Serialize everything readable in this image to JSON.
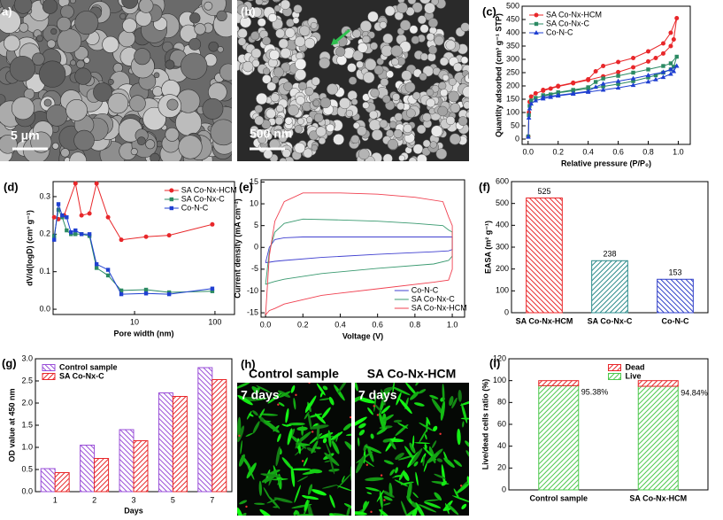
{
  "images": [
    {
      "label": "a)",
      "scale_bar": "5 μm"
    },
    {
      "label": "(b)",
      "scale_bar": "500 nm"
    },
    {
      "label": "(h)",
      "panels": [
        {
          "title": "Control sample",
          "note": "7 days"
        },
        {
          "title": "SA Co-Nx-HCM",
          "note": "7 days"
        }
      ]
    }
  ],
  "chart_data": [
    {
      "label": "(c)",
      "type": "line",
      "xlabel": "Relative pressure (P/P₀)",
      "ylabel": "Quantity adsorbed (cm³ g⁻¹ STP)",
      "xlim": [
        -0.04,
        1.08
      ],
      "ylim": [
        -20,
        500
      ],
      "xticks": [
        {
          "value": 0,
          "label": "0.0"
        },
        0.2,
        0.4,
        0.6,
        0.8,
        {
          "value": 1,
          "label": "1.0"
        }
      ],
      "yticks": [
        0,
        50,
        100,
        150,
        200,
        250,
        300,
        350,
        400,
        450,
        500
      ],
      "legend": "upper left",
      "x": [
        0.001,
        0.005,
        0.01,
        0.02,
        0.05,
        0.1,
        0.15,
        0.2,
        0.3,
        0.4,
        0.5,
        0.6,
        0.7,
        0.8,
        0.85,
        0.9,
        0.95,
        0.97,
        0.99,
        0.95,
        0.9,
        0.8,
        0.7,
        0.6,
        0.5,
        0.45,
        0.4,
        0.3,
        0.2,
        0.1
      ],
      "series": [
        {
          "name": "SA Co-Nx-HCM",
          "color": "#e8272a",
          "marker": "circle",
          "values": [
            10,
            100,
            140,
            160,
            172,
            182,
            190,
            198,
            210,
            222,
            236,
            252,
            270,
            292,
            305,
            322,
            350,
            375,
            455,
            400,
            360,
            330,
            305,
            290,
            275,
            255,
            225,
            212,
            200,
            185
          ]
        },
        {
          "name": "SA Co-Nx-C",
          "color": "#2b8a63",
          "marker": "square",
          "values": [
            10,
            90,
            125,
            145,
            155,
            162,
            168,
            174,
            182,
            190,
            198,
            207,
            218,
            232,
            240,
            250,
            262,
            272,
            310,
            285,
            275,
            262,
            250,
            238,
            228,
            215,
            195,
            185,
            176,
            165
          ]
        },
        {
          "name": "Co-N-C",
          "color": "#1f3fd1",
          "marker": "triangle",
          "values": [
            8,
            80,
            115,
            133,
            145,
            152,
            158,
            163,
            170,
            177,
            185,
            193,
            203,
            216,
            224,
            233,
            245,
            255,
            275,
            262,
            252,
            240,
            228,
            218,
            208,
            196,
            180,
            172,
            165,
            158
          ]
        }
      ]
    },
    {
      "label": "(d)",
      "type": "line",
      "xscale": "log",
      "xlabel": "Pore width (nm)",
      "ylabel": "dV/d(logD) (cm³ g⁻¹)",
      "xlim": [
        0.97,
        175
      ],
      "ylim": [
        -0.014,
        0.34
      ],
      "xticks": [
        10,
        100
      ],
      "yticks": [
        {
          "value": 0,
          "label": "0.0"
        },
        0.1,
        0.2,
        0.3
      ],
      "legend": "upper right",
      "series": [
        {
          "name": "SA Co-Nx-HCM",
          "color": "#e8272a",
          "marker": "circle",
          "x": [
            1.0,
            1.13,
            1.33,
            1.84,
            2.19,
            2.75,
            3.37,
            4.68,
            6.84,
            13.9,
            26.9,
            92.7
          ],
          "values": [
            0.245,
            0.24,
            0.25,
            0.335,
            0.25,
            0.255,
            0.335,
            0.245,
            0.185,
            0.193,
            0.197,
            0.226
          ]
        },
        {
          "name": "SA Co-Nx-C",
          "color": "#2b8a63",
          "marker": "square",
          "x": [
            1.0,
            1.13,
            1.26,
            1.43,
            1.62,
            1.84,
            2.19,
            2.75,
            3.37,
            4.68,
            6.84,
            13.9,
            26.9,
            92.7
          ],
          "values": [
            0.195,
            0.265,
            0.245,
            0.21,
            0.2,
            0.2,
            0.2,
            0.195,
            0.11,
            0.09,
            0.05,
            0.052,
            0.045,
            0.048
          ]
        },
        {
          "name": "Co-N-C",
          "color": "#1f3fd1",
          "marker": "square",
          "x": [
            1.0,
            1.13,
            1.26,
            1.43,
            1.62,
            1.84,
            2.19,
            2.75,
            3.37,
            4.68,
            6.84,
            13.9,
            26.9,
            92.7
          ],
          "values": [
            0.185,
            0.28,
            0.25,
            0.245,
            0.205,
            0.21,
            0.2,
            0.2,
            0.12,
            0.105,
            0.04,
            0.042,
            0.04,
            0.055
          ]
        }
      ]
    },
    {
      "label": "(e)",
      "type": "line",
      "xlabel": "Voltage (V)",
      "ylabel": "Current density (mA cm⁻²)",
      "xlim": [
        -0.024,
        1.066
      ],
      "ylim": [
        -16,
        15.5
      ],
      "xticks": [
        {
          "value": 0,
          "label": "0.0"
        },
        0.2,
        0.4,
        0.6,
        0.8,
        {
          "value": 1,
          "label": "1.0"
        }
      ],
      "yticks": [
        -15,
        -10,
        -5,
        0,
        5,
        10,
        15
      ],
      "legend": "lower right",
      "x": [
        0.0,
        0.02,
        0.05,
        0.1,
        0.2,
        0.4,
        0.6,
        0.8,
        0.95,
        0.98,
        1.0,
        1.0,
        0.98,
        0.9,
        0.6,
        0.3,
        0.1,
        0.05,
        0.02,
        0.0
      ],
      "series": [
        {
          "name": "Co-N-C",
          "color": "#4040d0",
          "values": [
            -3.5,
            0,
            1.8,
            2.2,
            2.4,
            2.4,
            2.4,
            2.4,
            2.4,
            2.4,
            2.4,
            -0.5,
            -0.8,
            -1,
            -1.6,
            -2.3,
            -3,
            -3.2,
            -3.4,
            -3.5
          ]
        },
        {
          "name": "SA Co-Nx-C",
          "color": "#3a9a70",
          "values": [
            -8.5,
            -1,
            3.5,
            5.5,
            6.5,
            6.3,
            6,
            5.5,
            5,
            4,
            3.5,
            -2,
            -3,
            -3.8,
            -4.8,
            -6,
            -7.3,
            -7.8,
            -8.2,
            -8.5
          ]
        },
        {
          "name": "SA Co-Nx-HCM",
          "color": "#f04050",
          "values": [
            -15.5,
            -2,
            6,
            10.5,
            12.5,
            12.5,
            12.2,
            11.5,
            10.5,
            7,
            5,
            -5,
            -7.5,
            -8,
            -9.5,
            -11,
            -13,
            -14,
            -14.5,
            -15.5
          ]
        }
      ]
    },
    {
      "label": "(f)",
      "type": "bar",
      "ylabel": "EASA (m² g⁻¹)",
      "categories": [
        "SA Co-Nx-HCM",
        "SA Co-Nx-C",
        "Co-N-C"
      ],
      "values": [
        525,
        238,
        153
      ],
      "colors": [
        "#e8272a",
        "#2a8a8a",
        "#2f3fc8"
      ],
      "ylim": [
        0,
        600
      ],
      "yticks": [
        0,
        100,
        200,
        300,
        400,
        500,
        600
      ]
    },
    {
      "label": "(g)",
      "type": "bar",
      "xlabel": "Days",
      "ylabel": "OD value at 450 nm",
      "categories": [
        "1",
        "2",
        "3",
        "5",
        "7"
      ],
      "series": [
        {
          "name": "Control sample",
          "color": "#9a4fd8",
          "values": [
            0.52,
            1.05,
            1.4,
            2.23,
            2.8
          ]
        },
        {
          "name": "SA Co-Nx-C",
          "color": "#e8272a",
          "values": [
            0.43,
            0.75,
            1.15,
            2.15,
            2.53
          ]
        }
      ],
      "ylim": [
        0,
        3
      ],
      "yticks": [
        {
          "value": 0,
          "label": "0.0"
        },
        0.5,
        {
          "value": 1,
          "label": "1.0"
        },
        1.5,
        {
          "value": 2,
          "label": "2.0"
        },
        2.5,
        {
          "value": 3,
          "label": "3.0"
        }
      ],
      "legend": "upper left"
    },
    {
      "label": "(i)",
      "type": "stacked_bar",
      "ylabel": "Live/dead cells ratio (%)",
      "categories": [
        "Control sample",
        "SA Co-Nx-HCM"
      ],
      "series": [
        {
          "name": "Live",
          "color": "#4cc84c",
          "values": [
            95.38,
            94.84
          ],
          "value_labels": [
            "95.38%",
            "94.84%"
          ]
        },
        {
          "name": "Dead",
          "color": "#e8272a",
          "values": [
            4.62,
            5.16
          ]
        }
      ],
      "ylim": [
        0,
        120
      ],
      "yticks": [
        0,
        20,
        40,
        60,
        80,
        100,
        120
      ],
      "legend": "upper center"
    }
  ]
}
